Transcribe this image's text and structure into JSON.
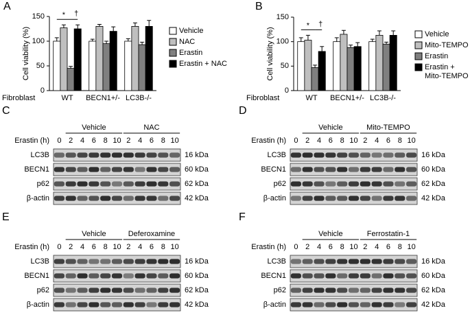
{
  "chart_data": [
    {
      "type": "bar",
      "panel": "A",
      "ylabel": "Cell viability (%)",
      "xlabel": "Fibroblast",
      "categories": [
        "WT",
        "BECN1+/-",
        "LC3B-/-"
      ],
      "series": [
        {
          "name": "Vehicle",
          "color": "#ffffff",
          "values": [
            100,
            100,
            100
          ],
          "errors": [
            7,
            4,
            5
          ]
        },
        {
          "name": "NAC",
          "color": "#bfbfbf",
          "values": [
            127,
            130,
            130
          ],
          "errors": [
            6,
            4,
            7
          ]
        },
        {
          "name": "Erastin",
          "color": "#7f7f7f",
          "values": [
            45,
            95,
            93
          ],
          "errors": [
            4,
            5,
            5
          ]
        },
        {
          "name": "Erastin + NAC",
          "color": "#000000",
          "values": [
            125,
            120,
            130
          ],
          "errors": [
            8,
            9,
            12
          ]
        }
      ],
      "annotations": [
        "*",
        "†"
      ],
      "ylim": [
        0,
        150
      ],
      "yticks": [
        0,
        50,
        100,
        150
      ]
    },
    {
      "type": "bar",
      "panel": "B",
      "ylabel": "Cell viability (%)",
      "xlabel": "Fibroblast",
      "categories": [
        "WT",
        "BECN1+/-",
        "LC3B-/-"
      ],
      "series": [
        {
          "name": "Vehicle",
          "color": "#ffffff",
          "values": [
            100,
            100,
            100
          ],
          "errors": [
            8,
            8,
            5
          ]
        },
        {
          "name": "Mito-TEMPO",
          "color": "#bfbfbf",
          "values": [
            103,
            115,
            113
          ],
          "errors": [
            10,
            8,
            9
          ]
        },
        {
          "name": "Erastin",
          "color": "#7f7f7f",
          "values": [
            47,
            88,
            95
          ],
          "errors": [
            5,
            5,
            4
          ]
        },
        {
          "name": "Erastin + Mito-TEMPO",
          "color": "#000000",
          "values": [
            80,
            90,
            113
          ],
          "errors": [
            10,
            8,
            9
          ]
        }
      ],
      "annotations": [
        "*",
        "†"
      ],
      "ylim": [
        0,
        150
      ],
      "yticks": [
        0,
        50,
        100,
        150
      ]
    }
  ],
  "blots": [
    {
      "panel": "C",
      "axis_label": "Erastin (h)",
      "groups": [
        "Vehicle",
        "NAC"
      ],
      "times": [
        "0",
        "2",
        "4",
        "6",
        "8",
        "10",
        "2",
        "4",
        "6",
        "8",
        "10"
      ],
      "rows": [
        {
          "protein": "LC3B",
          "size": "16 kDa"
        },
        {
          "protein": "BECN1",
          "size": "60 kDa"
        },
        {
          "protein": "p62",
          "size": "62 kDa"
        },
        {
          "protein": "β-actin",
          "size": "42 kDa"
        }
      ]
    },
    {
      "panel": "D",
      "axis_label": "Erastin (h)",
      "groups": [
        "Vehicle",
        "Mito-TEMPO"
      ],
      "times": [
        "0",
        "2",
        "4",
        "6",
        "8",
        "10",
        "2",
        "4",
        "6",
        "8",
        "10"
      ],
      "rows": [
        {
          "protein": "LC3B",
          "size": "16 kDa"
        },
        {
          "protein": "BECN1",
          "size": "60 kDa"
        },
        {
          "protein": "p62",
          "size": "62 kDa"
        },
        {
          "protein": "β-actin",
          "size": "42 kDa"
        }
      ]
    },
    {
      "panel": "E",
      "axis_label": "Erastin (h)",
      "groups": [
        "Vehicle",
        "Deferoxamine"
      ],
      "times": [
        "0",
        "2",
        "4",
        "6",
        "8",
        "10",
        "2",
        "4",
        "6",
        "8",
        "10"
      ],
      "rows": [
        {
          "protein": "LC3B",
          "size": "16 kDa"
        },
        {
          "protein": "BECN1",
          "size": "60 kDa"
        },
        {
          "protein": "p62",
          "size": "62 kDa"
        },
        {
          "protein": "β-actin",
          "size": "42 kDa"
        }
      ]
    },
    {
      "panel": "F",
      "axis_label": "Erastin (h)",
      "groups": [
        "Vehicle",
        "Ferrostatin-1"
      ],
      "times": [
        "0",
        "2",
        "4",
        "6",
        "8",
        "10",
        "2",
        "4",
        "6",
        "8",
        "10"
      ],
      "rows": [
        {
          "protein": "LC3B",
          "size": "16 kDa"
        },
        {
          "protein": "BECN1",
          "size": "60 kDa"
        },
        {
          "protein": "p62",
          "size": "62 kDa"
        },
        {
          "protein": "β-actin",
          "size": "42 kDa"
        }
      ]
    }
  ]
}
